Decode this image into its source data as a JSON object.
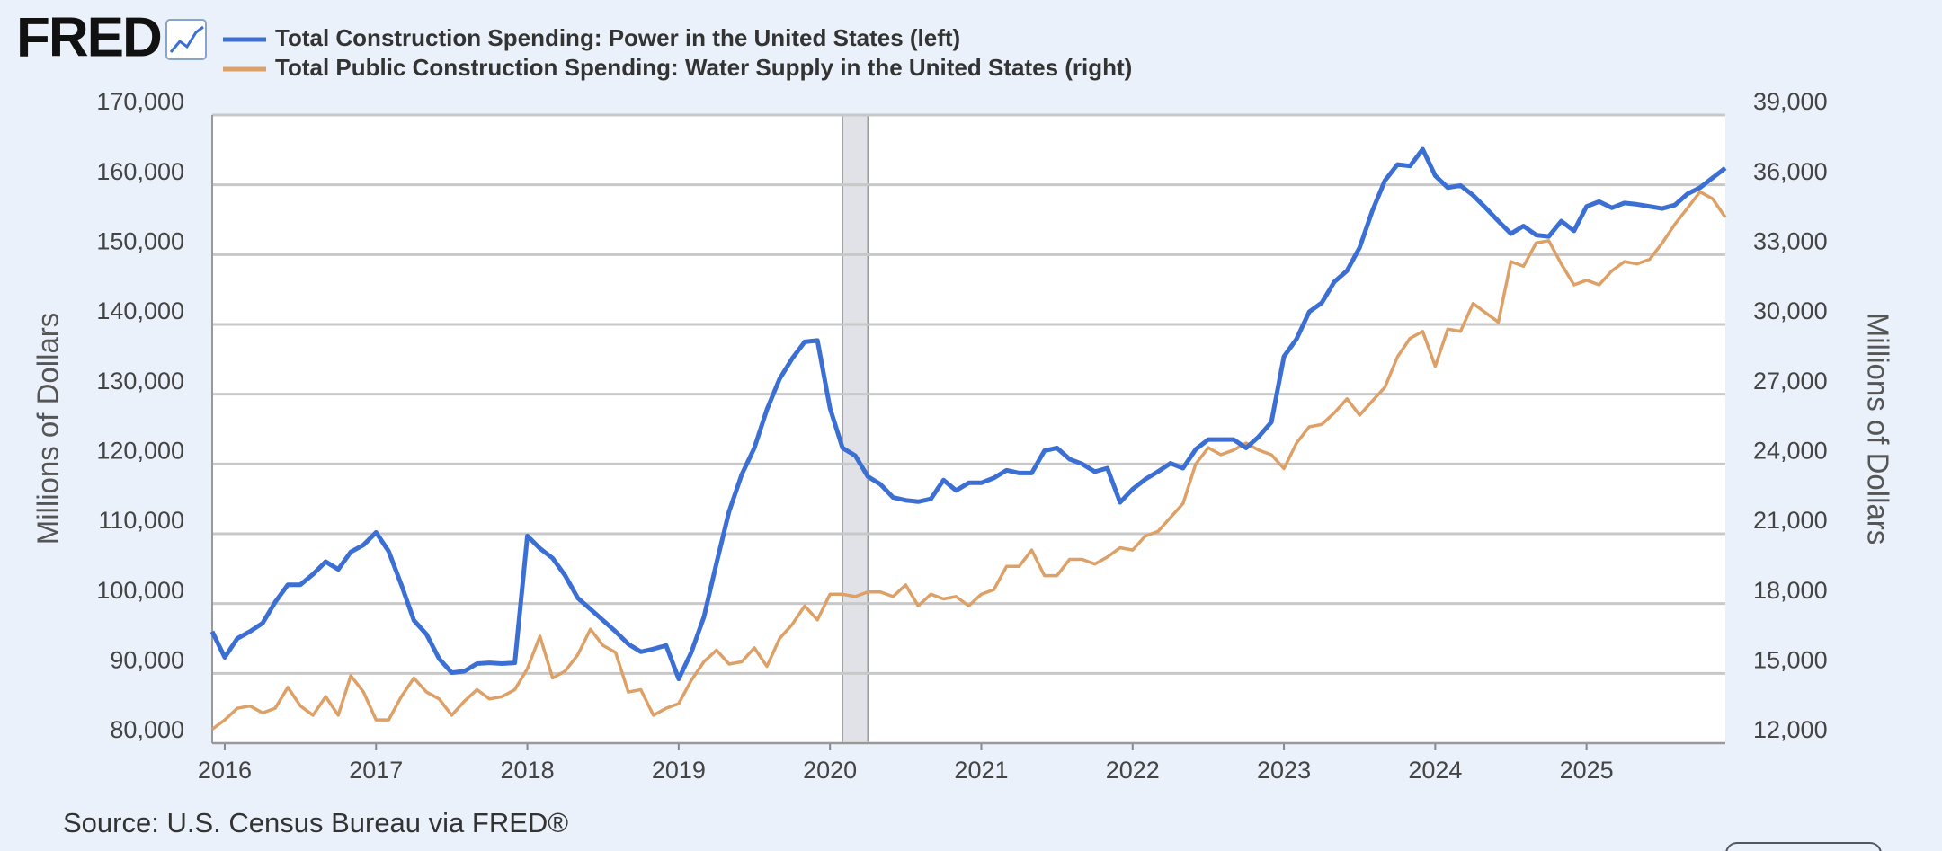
{
  "logo": "FRED",
  "chart_data": {
    "type": "line",
    "source": "Source: U.S. Census Bureau via FRED®",
    "y_label": "Millions of Dollars",
    "y2_label": "Millions of Dollars",
    "x": [
      2015.917,
      2016.0,
      2016.083,
      2016.167,
      2016.25,
      2016.333,
      2016.417,
      2016.5,
      2016.583,
      2016.667,
      2016.75,
      2016.833,
      2016.917,
      2017.0,
      2017.083,
      2017.167,
      2017.25,
      2017.333,
      2017.417,
      2017.5,
      2017.583,
      2017.667,
      2017.75,
      2017.833,
      2017.917,
      2018.0,
      2018.083,
      2018.167,
      2018.25,
      2018.333,
      2018.417,
      2018.5,
      2018.583,
      2018.667,
      2018.75,
      2018.833,
      2018.917,
      2019.0,
      2019.083,
      2019.167,
      2019.25,
      2019.333,
      2019.417,
      2019.5,
      2019.583,
      2019.667,
      2019.75,
      2019.833,
      2019.917,
      2020.0,
      2020.083,
      2020.167,
      2020.25,
      2020.333,
      2020.417,
      2020.5,
      2020.583,
      2020.667,
      2020.75,
      2020.833,
      2020.917,
      2021.0,
      2021.083,
      2021.167,
      2021.25,
      2021.333,
      2021.417,
      2021.5,
      2021.583,
      2021.667,
      2021.75,
      2021.833,
      2021.917,
      2022.0,
      2022.083,
      2022.167,
      2022.25,
      2022.333,
      2022.417,
      2022.5,
      2022.583,
      2022.667,
      2022.75,
      2022.833,
      2022.917,
      2023.0,
      2023.083,
      2023.167,
      2023.25,
      2023.333,
      2023.417,
      2023.5,
      2023.583,
      2023.667,
      2023.75,
      2023.833,
      2023.917,
      2024.0,
      2024.083,
      2024.167,
      2024.25,
      2024.333,
      2024.417,
      2024.5,
      2024.583,
      2024.667,
      2024.75,
      2024.833,
      2024.917,
      2025.0,
      2025.083,
      2025.167,
      2025.25,
      2025.333,
      2025.417,
      2025.5,
      2025.583,
      2025.667,
      2025.75,
      2025.833,
      2025.917
    ],
    "series": [
      {
        "name": "Total Construction Spending: Power in the United States (left)",
        "color": "#3b6fd4",
        "axis": "y",
        "values": [
          96000,
          92300,
          95000,
          96000,
          97200,
          100200,
          102700,
          102700,
          104200,
          106000,
          104900,
          107400,
          108400,
          110200,
          107500,
          102700,
          97600,
          95600,
          92100,
          90100,
          90300,
          91400,
          91500,
          91400,
          91500,
          109700,
          107900,
          106500,
          104000,
          100800,
          99200,
          97600,
          96000,
          94200,
          93100,
          93500,
          94000,
          89200,
          93000,
          98100,
          105800,
          113200,
          118500,
          122300,
          127800,
          132200,
          135100,
          137500,
          137700,
          128000,
          122300,
          121200,
          118200,
          117100,
          115200,
          114800,
          114600,
          115000,
          117700,
          116200,
          117300,
          117300,
          118000,
          119100,
          118700,
          118700,
          121900,
          122300,
          120700,
          120000,
          118900,
          119400,
          114500,
          116400,
          117800,
          118900,
          120100,
          119400,
          122100,
          123500,
          123500,
          123500,
          122300,
          123900,
          126000,
          135400,
          137900,
          141800,
          143100,
          146100,
          147700,
          151000,
          156200,
          160600,
          162900,
          162700,
          165100,
          161300,
          159600,
          159900,
          158500,
          156700,
          154800,
          153000,
          154100,
          152800,
          152600,
          154800,
          153400,
          156900,
          157600,
          156700,
          157400,
          157200,
          156900,
          156600,
          157100,
          158700,
          159600,
          161000,
          162400
        ]
      },
      {
        "name": "Total Public Construction Spending: Water Supply in the United States (right)",
        "color": "#dda066",
        "axis": "y2",
        "values": [
          12600,
          13000,
          13500,
          13600,
          13300,
          13500,
          14400,
          13600,
          13200,
          14000,
          13200,
          14900,
          14200,
          13000,
          13000,
          14000,
          14800,
          14200,
          13900,
          13200,
          13800,
          14300,
          13900,
          14000,
          14300,
          15200,
          16600,
          14800,
          15100,
          15800,
          16900,
          16200,
          15900,
          14200,
          14300,
          13200,
          13500,
          13700,
          14700,
          15500,
          16000,
          15400,
          15500,
          16100,
          15300,
          16500,
          17100,
          17900,
          17300,
          18400,
          18400,
          18300,
          18500,
          18500,
          18300,
          18800,
          17900,
          18400,
          18200,
          18300,
          17900,
          18400,
          18600,
          19600,
          19600,
          20300,
          19200,
          19200,
          19900,
          19900,
          19700,
          20000,
          20400,
          20300,
          20900,
          21100,
          21700,
          22300,
          24000,
          24700,
          24400,
          24600,
          24900,
          24600,
          24400,
          23800,
          24900,
          25600,
          25700,
          26200,
          26800,
          26100,
          26700,
          27300,
          28600,
          29400,
          29700,
          28200,
          29800,
          29700,
          30900,
          30500,
          30100,
          32700,
          32500,
          33500,
          33600,
          32600,
          31700,
          31900,
          31700,
          32300,
          32700,
          32600,
          32800,
          33500,
          34300,
          35000,
          35700,
          35400,
          34600
        ]
      }
    ],
    "recessions": [
      [
        2020.083,
        2020.25
      ]
    ],
    "recession_color": "#e0e2e8",
    "xlim": [
      2015.917,
      2025.917
    ],
    "xticks": [
      2016,
      2017,
      2018,
      2019,
      2020,
      2021,
      2022,
      2023,
      2024,
      2025
    ],
    "ylim": [
      80000,
      170000
    ],
    "yticks": [
      {
        "value": 80000,
        "label": "80,000"
      },
      {
        "value": 90000,
        "label": "90,000"
      },
      {
        "value": 100000,
        "label": "100,000"
      },
      {
        "value": 110000,
        "label": "110,000"
      },
      {
        "value": 120000,
        "label": "120,000"
      },
      {
        "value": 130000,
        "label": "130,000"
      },
      {
        "value": 140000,
        "label": "140,000"
      },
      {
        "value": 150000,
        "label": "150,000"
      },
      {
        "value": 160000,
        "label": "160,000"
      },
      {
        "value": 170000,
        "label": "170,000"
      }
    ],
    "y2lim": [
      12000,
      39000
    ],
    "y2ticks": [
      {
        "value": 12000,
        "label": "12,000"
      },
      {
        "value": 15000,
        "label": "15,000"
      },
      {
        "value": 18000,
        "label": "18,000"
      },
      {
        "value": 21000,
        "label": "21,000"
      },
      {
        "value": 24000,
        "label": "24,000"
      },
      {
        "value": 27000,
        "label": "27,000"
      },
      {
        "value": 30000,
        "label": "30,000"
      },
      {
        "value": 33000,
        "label": "33,000"
      },
      {
        "value": 36000,
        "label": "36,000"
      },
      {
        "value": 39000,
        "label": "39,000"
      }
    ],
    "grid": true
  }
}
